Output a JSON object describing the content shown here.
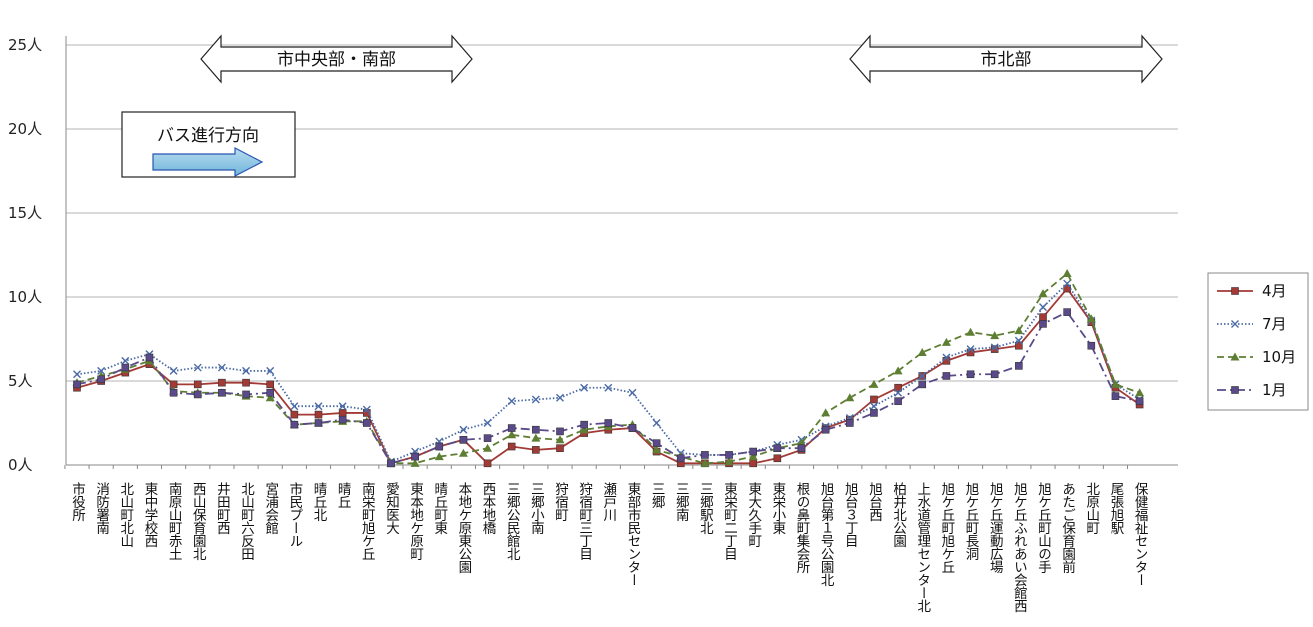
{
  "chart_data": {
    "type": "line",
    "ylim": [
      0,
      25
    ],
    "y_ticks": [
      "0人",
      "5人",
      "10人",
      "15人",
      "20人",
      "25人"
    ],
    "y_tick_values": [
      0,
      5,
      10,
      15,
      20,
      25
    ],
    "grid": "horizontal",
    "legend_position": "right",
    "categories": [
      "市役所",
      "消防署南",
      "北山町北山",
      "東中学校西",
      "南原山町赤土",
      "西山保育園北",
      "井田町西",
      "北山町六反田",
      "宮浦会館",
      "市民プール",
      "晴丘北",
      "晴丘",
      "南栄町旭ケ丘",
      "愛知医大",
      "東本地ケ原町",
      "晴丘町東",
      "本地ケ原東公園",
      "西本地橋",
      "三郷公民館北",
      "三郷小南",
      "狩宿町",
      "狩宿町三丁目",
      "瀬戸川",
      "東部市民センター",
      "三郷",
      "三郷南",
      "三郷駅北",
      "東栄町二丁目",
      "東大久手町",
      "東栄小東",
      "根の鼻町集会所",
      "旭台第１号公園北",
      "旭台３丁目",
      "旭台西",
      "柏井北公園",
      "上水道管理センター北",
      "旭ケ丘町旭ケ丘",
      "旭ケ丘町長洞",
      "旭ケ丘運動広場",
      "旭ケ丘ふれあい会館西",
      "旭ケ丘町山の手",
      "あたご保育園前",
      "北原山町",
      "尾張旭駅",
      "保健福祉センター"
    ],
    "series": [
      {
        "name": "4月",
        "color": "#a33a36",
        "marker": "square",
        "dash": "solid",
        "values": [
          4.6,
          5.0,
          5.5,
          6.0,
          4.8,
          4.8,
          4.9,
          4.9,
          4.8,
          3.0,
          3.0,
          3.1,
          3.1,
          0.1,
          0.5,
          1.1,
          1.5,
          0.1,
          1.1,
          0.9,
          1.0,
          1.9,
          2.1,
          2.2,
          0.8,
          0.1,
          0.1,
          0.1,
          0.1,
          0.4,
          0.9,
          2.2,
          2.7,
          3.9,
          4.6,
          5.3,
          6.2,
          6.7,
          6.9,
          7.1,
          8.8,
          10.5,
          8.5,
          4.6,
          3.6
        ]
      },
      {
        "name": "7月",
        "color": "#4a6aa5",
        "marker": "x",
        "dash": "dotted",
        "values": [
          5.4,
          5.6,
          6.2,
          6.6,
          5.6,
          5.8,
          5.8,
          5.6,
          5.6,
          3.5,
          3.5,
          3.5,
          3.3,
          0.2,
          0.8,
          1.4,
          2.1,
          2.5,
          3.8,
          3.9,
          4.0,
          4.6,
          4.6,
          4.3,
          2.5,
          0.7,
          0.6,
          0.6,
          0.8,
          1.2,
          1.5,
          2.3,
          2.8,
          3.5,
          4.3,
          5.3,
          6.4,
          6.9,
          7.0,
          7.4,
          9.4,
          10.8,
          8.6,
          4.8,
          3.9
        ]
      },
      {
        "name": "10月",
        "color": "#5e7f33",
        "marker": "triangle",
        "dash": "dashed",
        "values": [
          4.9,
          5.3,
          5.7,
          6.2,
          4.4,
          4.3,
          4.3,
          4.1,
          4.0,
          2.4,
          2.5,
          2.6,
          2.6,
          0.1,
          0.1,
          0.5,
          0.7,
          1.0,
          1.8,
          1.6,
          1.5,
          2.1,
          2.3,
          2.4,
          0.9,
          0.5,
          0.1,
          0.2,
          0.5,
          1.0,
          1.3,
          3.1,
          4.0,
          4.8,
          5.6,
          6.7,
          7.3,
          7.9,
          7.7,
          8.0,
          10.2,
          11.4,
          8.7,
          4.8,
          4.3
        ]
      },
      {
        "name": "1月",
        "color": "#5a4a8a",
        "marker": "square",
        "dash": "dashdot",
        "values": [
          4.8,
          5.1,
          5.8,
          6.4,
          4.3,
          4.2,
          4.3,
          4.2,
          4.3,
          2.4,
          2.5,
          2.7,
          2.5,
          0.1,
          0.5,
          1.1,
          1.5,
          1.6,
          2.2,
          2.1,
          2.0,
          2.4,
          2.5,
          2.2,
          1.3,
          0.4,
          0.6,
          0.6,
          0.8,
          1.0,
          1.0,
          2.1,
          2.5,
          3.1,
          3.8,
          4.8,
          5.3,
          5.4,
          5.4,
          5.9,
          8.4,
          9.1,
          7.1,
          4.1,
          3.8
        ]
      }
    ],
    "annotations": [
      {
        "text": "市中央部・南部",
        "type": "double-arrow",
        "from_index": 5,
        "to_index": 15
      },
      {
        "text": "市北部",
        "type": "double-arrow",
        "from_index": 31,
        "to_index": 43
      },
      {
        "text": "バス進行方向",
        "type": "arrow-box"
      }
    ]
  }
}
